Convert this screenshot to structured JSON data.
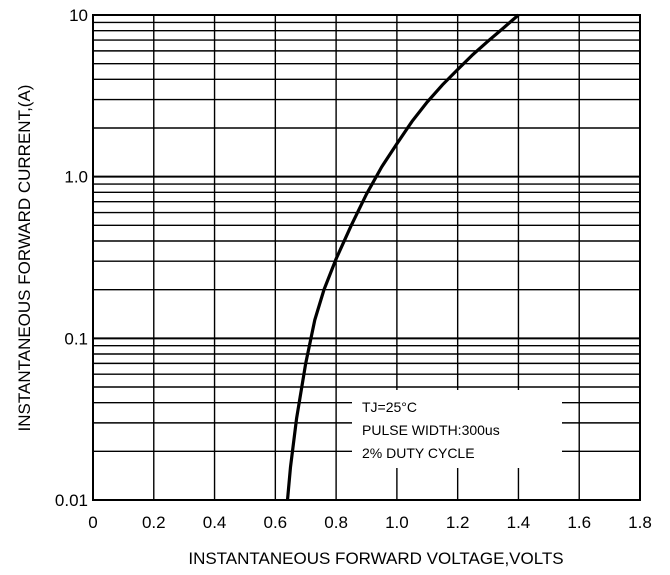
{
  "chart_data": {
    "type": "line",
    "title": "",
    "xlabel": "INSTANTANEOUS FORWARD VOLTAGE,VOLTS",
    "ylabel": "INSTANTANEOUS FORWARD CURRENT,(A)",
    "xlim": [
      0,
      1.8
    ],
    "ylim": [
      0.01,
      10
    ],
    "y_scale": "log",
    "grid": true,
    "x_ticks": [
      "0",
      "0.2",
      "0.4",
      "0.6",
      "0.8",
      "1.0",
      "1.2",
      "1.4",
      "1.6",
      "1.8"
    ],
    "y_ticks": [
      "0.01",
      "0.1",
      "1.0",
      "10"
    ],
    "annotation": [
      "TJ=25°C",
      "PULSE WIDTH:300us",
      "2% DUTY CYCLE"
    ],
    "series": [
      {
        "x": [
          0.64,
          0.65,
          0.67,
          0.7,
          0.73,
          0.76,
          0.8,
          0.85,
          0.9,
          0.95,
          1.0,
          1.05,
          1.1,
          1.15,
          1.2,
          1.25,
          1.3,
          1.35,
          1.4
        ],
        "y": [
          0.01,
          0.016,
          0.032,
          0.07,
          0.13,
          0.2,
          0.31,
          0.5,
          0.78,
          1.15,
          1.6,
          2.2,
          2.9,
          3.7,
          4.6,
          5.7,
          6.9,
          8.3,
          10.0
        ]
      }
    ]
  }
}
